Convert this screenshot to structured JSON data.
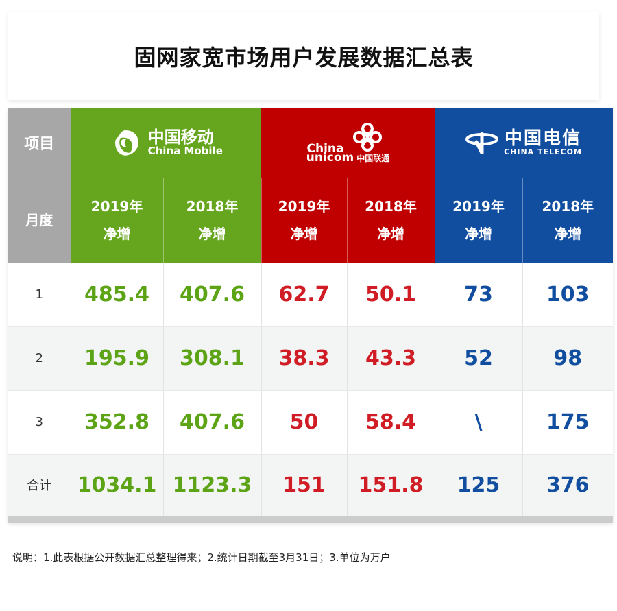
{
  "title": "固网家宽市场用户发展数据汇总表",
  "header": {
    "item_label": "项目",
    "month_label": "月度",
    "carriers": [
      {
        "cn": "中国移动",
        "en": "China Mobile",
        "color": "#66a61e",
        "icon": "china-mobile-logo"
      },
      {
        "cn": "中国联通",
        "en_line1": "China",
        "en_line2": "unicom",
        "color": "#c00000",
        "icon": "china-unicom-knot-logo"
      },
      {
        "cn": "中国电信",
        "en": "CHINA TELECOM",
        "color": "#114ea0",
        "icon": "china-telecom-logo"
      }
    ],
    "columns": [
      "2019年\n净增",
      "2018年\n净增",
      "2019年\n净增",
      "2018年\n净增",
      "2019年\n净增",
      "2018年\n净增"
    ]
  },
  "rows": [
    {
      "label": "1",
      "values": [
        "485.4",
        "407.6",
        "62.7",
        "50.1",
        "73",
        "103"
      ]
    },
    {
      "label": "2",
      "values": [
        "195.9",
        "308.1",
        "38.3",
        "43.3",
        "52",
        "98"
      ]
    },
    {
      "label": "3",
      "values": [
        "352.8",
        "407.6",
        "50",
        "58.4",
        "\\",
        "175"
      ]
    },
    {
      "label": "合计",
      "values": [
        "1034.1",
        "1123.3",
        "151",
        "151.8",
        "125",
        "376"
      ]
    }
  ],
  "footnote": "说明：1.此表根据公开数据汇总整理得来；2.统计日期截至3月31日；3.单位为万户"
}
